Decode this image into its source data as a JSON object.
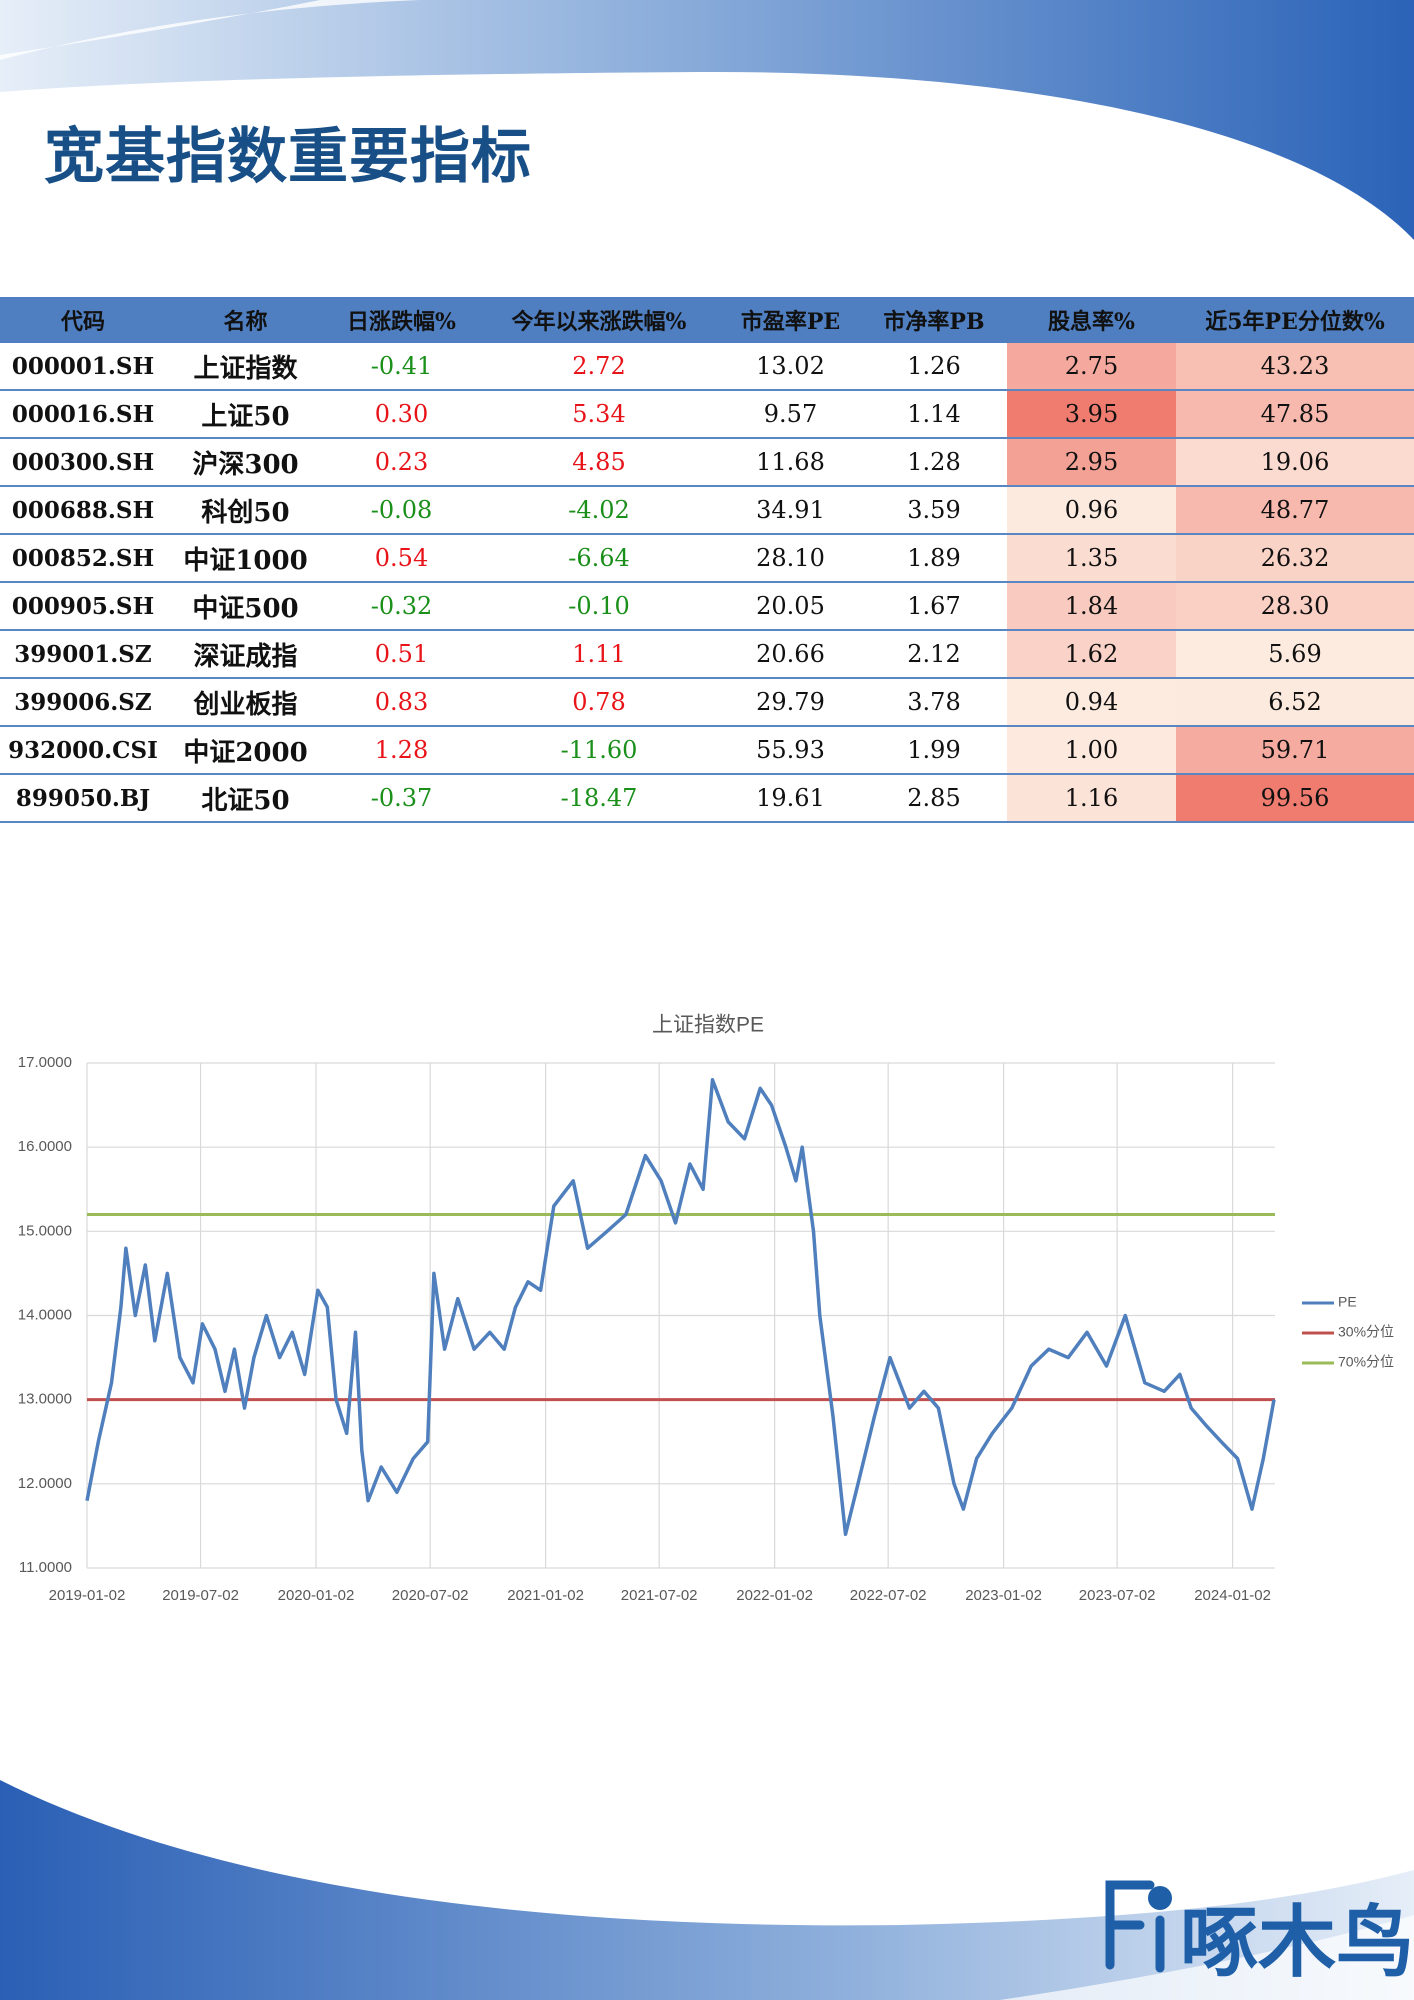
{
  "header": {
    "title": "宽基指数重要指标"
  },
  "table": {
    "columns": [
      "代码",
      "名称",
      "日涨跌幅%",
      "今年以来涨跌幅%",
      "市盈率PE",
      "市净率PB",
      "股息率%",
      "近5年PE分位数%"
    ],
    "rows": [
      [
        "000001.SH",
        "上证指数",
        "-0.41",
        "2.72",
        "13.02",
        "1.26",
        "2.75",
        "43.23"
      ],
      [
        "000016.SH",
        "上证50",
        "0.30",
        "5.34",
        "9.57",
        "1.14",
        "3.95",
        "47.85"
      ],
      [
        "000300.SH",
        "沪深300",
        "0.23",
        "4.85",
        "11.68",
        "1.28",
        "2.95",
        "19.06"
      ],
      [
        "000688.SH",
        "科创50",
        "-0.08",
        "-4.02",
        "34.91",
        "3.59",
        "0.96",
        "48.77"
      ],
      [
        "000852.SH",
        "中证1000",
        "0.54",
        "-6.64",
        "28.10",
        "1.89",
        "1.35",
        "26.32"
      ],
      [
        "000905.SH",
        "中证500",
        "-0.32",
        "-0.10",
        "20.05",
        "1.67",
        "1.84",
        "28.30"
      ],
      [
        "399001.SZ",
        "深证成指",
        "0.51",
        "1.11",
        "20.66",
        "2.12",
        "1.62",
        "5.69"
      ],
      [
        "399006.SZ",
        "创业板指",
        "0.83",
        "0.78",
        "29.79",
        "3.78",
        "0.94",
        "6.52"
      ],
      [
        "932000.CSI",
        "中证2000",
        "1.28",
        "-11.60",
        "55.93",
        "1.99",
        "1.00",
        "59.71"
      ],
      [
        "899050.BJ",
        "北证50",
        "-0.37",
        "-18.47",
        "19.61",
        "2.85",
        "1.16",
        "99.56"
      ]
    ],
    "sign_colors": {
      "columns": [
        2,
        3
      ],
      "positive": "#e8141a",
      "negative": "#1a8f1a"
    },
    "heat": {
      "columns": [
        6,
        7
      ],
      "low": "#fdebe0",
      "high": "#f07c70"
    }
  },
  "chart_data": {
    "type": "line",
    "title": "上证指数PE",
    "x": [
      "2019-01-02",
      "2019-01-20",
      "2019-02-10",
      "2019-02-25",
      "2019-03-05",
      "2019-03-20",
      "2019-04-05",
      "2019-04-20",
      "2019-05-10",
      "2019-05-30",
      "2019-06-20",
      "2019-07-05",
      "2019-07-25",
      "2019-08-10",
      "2019-08-25",
      "2019-09-10",
      "2019-09-25",
      "2019-10-15",
      "2019-11-05",
      "2019-11-25",
      "2019-12-15",
      "2020-01-05",
      "2020-01-20",
      "2020-02-03",
      "2020-02-20",
      "2020-03-05",
      "2020-03-15",
      "2020-03-25",
      "2020-04-15",
      "2020-05-10",
      "2020-06-05",
      "2020-06-28",
      "2020-07-08",
      "2020-07-25",
      "2020-08-15",
      "2020-09-10",
      "2020-10-05",
      "2020-10-28",
      "2020-11-15",
      "2020-12-05",
      "2020-12-25",
      "2021-01-15",
      "2021-02-15",
      "2021-03-10",
      "2021-04-10",
      "2021-05-10",
      "2021-06-10",
      "2021-07-05",
      "2021-07-28",
      "2021-08-20",
      "2021-09-10",
      "2021-09-25",
      "2021-10-20",
      "2021-11-15",
      "2021-12-10",
      "2021-12-28",
      "2022-01-20",
      "2022-02-05",
      "2022-02-15",
      "2022-03-05",
      "2022-03-15",
      "2022-04-05",
      "2022-04-25",
      "2022-05-15",
      "2022-06-10",
      "2022-07-05",
      "2022-08-05",
      "2022-08-28",
      "2022-09-20",
      "2022-10-15",
      "2022-10-30",
      "2022-11-20",
      "2022-12-15",
      "2023-01-15",
      "2023-02-15",
      "2023-03-15",
      "2023-04-15",
      "2023-05-15",
      "2023-06-15",
      "2023-07-15",
      "2023-08-15",
      "2023-09-15",
      "2023-10-10",
      "2023-10-28",
      "2023-11-20",
      "2023-12-15",
      "2024-01-10",
      "2024-02-02",
      "2024-02-20",
      "2024-03-08"
    ],
    "series": [
      {
        "name": "PE",
        "color": "#4f7fbd",
        "values": [
          11.8,
          12.5,
          13.2,
          14.1,
          14.8,
          14.0,
          14.6,
          13.7,
          14.5,
          13.5,
          13.2,
          13.9,
          13.6,
          13.1,
          13.6,
          12.9,
          13.5,
          14.0,
          13.5,
          13.8,
          13.3,
          14.3,
          14.1,
          13.0,
          12.6,
          13.8,
          12.4,
          11.8,
          12.2,
          11.9,
          12.3,
          12.5,
          14.5,
          13.6,
          14.2,
          13.6,
          13.8,
          13.6,
          14.1,
          14.4,
          14.3,
          15.3,
          15.6,
          14.8,
          15.0,
          15.2,
          15.9,
          15.6,
          15.1,
          15.8,
          15.5,
          16.8,
          16.3,
          16.1,
          16.7,
          16.5,
          16.0,
          15.6,
          16.0,
          15.0,
          14.0,
          12.8,
          11.4,
          12.0,
          12.8,
          13.5,
          12.9,
          13.1,
          12.9,
          12.0,
          11.7,
          12.3,
          12.6,
          12.9,
          13.4,
          13.6,
          13.5,
          13.8,
          13.4,
          14.0,
          13.2,
          13.1,
          13.3,
          12.9,
          12.7,
          12.5,
          12.3,
          11.7,
          12.3,
          13.0
        ]
      }
    ],
    "hlines": [
      {
        "name": "30%分位",
        "color": "#c0504d",
        "value": 13.0
      },
      {
        "name": "70%分位",
        "color": "#9bbb59",
        "value": 15.2
      }
    ],
    "xlim": [
      "2019-01-02",
      "2024-03-08"
    ],
    "xticks": [
      "2019-01-02",
      "2019-07-02",
      "2020-01-02",
      "2020-07-02",
      "2021-01-02",
      "2021-07-02",
      "2022-01-02",
      "2022-07-02",
      "2023-01-02",
      "2023-07-02",
      "2024-01-02"
    ],
    "ylim": [
      11,
      17
    ],
    "yticks": [
      {
        "value": 11,
        "label": "11.0000"
      },
      {
        "value": 12,
        "label": "12.0000"
      },
      {
        "value": 13,
        "label": "13.0000"
      },
      {
        "value": 14,
        "label": "14.0000"
      },
      {
        "value": 15,
        "label": "15.0000"
      },
      {
        "value": 16,
        "label": "16.0000"
      },
      {
        "value": 17,
        "label": "17.0000"
      }
    ],
    "grid": true,
    "legend": "right"
  },
  "logo": {
    "text": "啄木鸟"
  }
}
